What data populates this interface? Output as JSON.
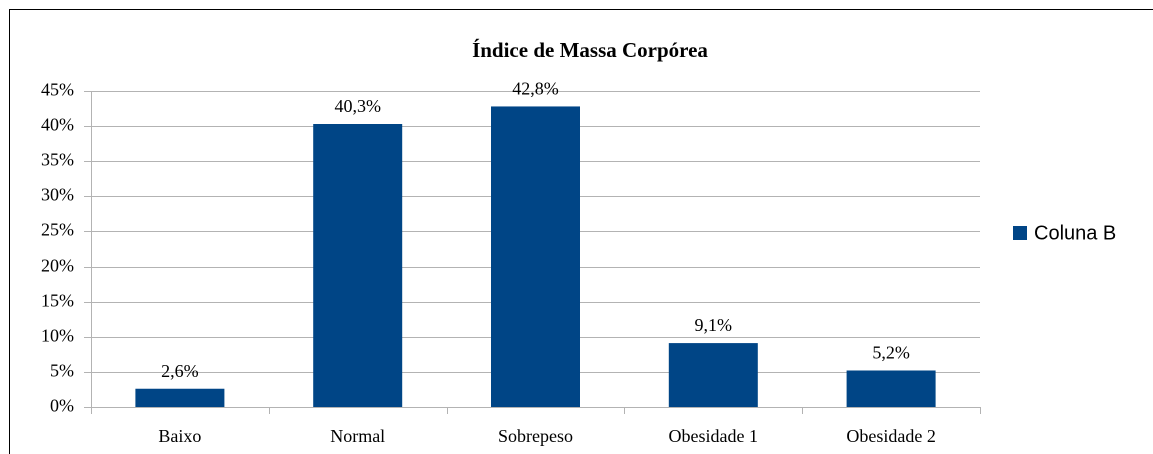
{
  "chart_data": {
    "type": "bar",
    "title": "Índice de Massa Corpórea",
    "categories": [
      "Baixo",
      "Normal",
      "Sobrepeso",
      "Obesidade 1",
      "Obesidade 2"
    ],
    "series": [
      {
        "name": "Coluna B",
        "color": "#004586",
        "values": [
          2.6,
          40.3,
          42.8,
          9.1,
          5.2
        ],
        "value_labels": [
          "2,6%",
          "40,3%",
          "42,8%",
          "9,1%",
          "5,2%"
        ]
      }
    ],
    "ylim": [
      0,
      45
    ],
    "yticks": [
      {
        "value": 0,
        "label": "0%"
      },
      {
        "value": 5,
        "label": "5%"
      },
      {
        "value": 10,
        "label": "10%"
      },
      {
        "value": 15,
        "label": "15%"
      },
      {
        "value": 20,
        "label": "20%"
      },
      {
        "value": 25,
        "label": "25%"
      },
      {
        "value": 30,
        "label": "30%"
      },
      {
        "value": 35,
        "label": "35%"
      },
      {
        "value": 40,
        "label": "40%"
      },
      {
        "value": 45,
        "label": "45%"
      }
    ],
    "grid": true,
    "legend": "right"
  }
}
